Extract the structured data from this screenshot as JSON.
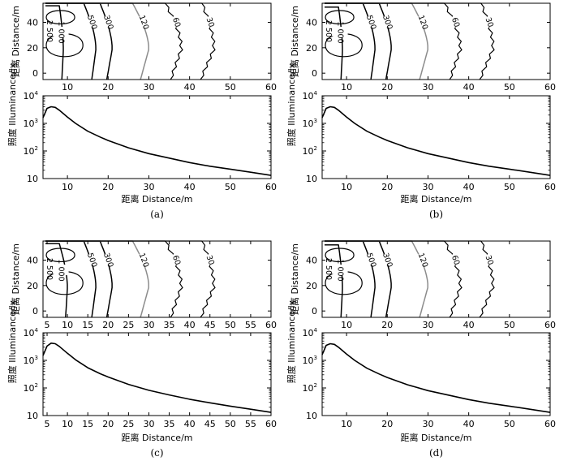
{
  "chart_data": [
    {
      "caption": "(a)",
      "contour": {
        "type": "contour",
        "ylabel": "距离 Distance/m",
        "xlim": [
          4,
          60
        ],
        "ylim": [
          -5,
          55
        ],
        "xticks": [
          10,
          20,
          30,
          40,
          50,
          60
        ],
        "yticks": [
          0,
          20,
          40
        ],
        "levels": [
          {
            "value": 2500,
            "label": "2 500",
            "color": "#000000",
            "x_reach": 6,
            "y_top": 50,
            "x_at_top": 5
          },
          {
            "value": 1000,
            "label": "1 000",
            "color": "#000000",
            "x_reach": 9,
            "y_top": 53,
            "x_at_top": 8
          },
          {
            "value": 500,
            "label": "500",
            "color": "#000000",
            "x_reach": 17,
            "y_top": 55,
            "x_at_top": 14
          },
          {
            "value": 300,
            "label": "300",
            "color": "#000000",
            "x_reach": 21,
            "y_top": 55,
            "x_at_top": 18
          },
          {
            "value": 120,
            "label": "120",
            "color": "#8c8c8c",
            "x_reach": 30,
            "y_top": 55,
            "x_at_top": 26
          },
          {
            "value": 60,
            "label": "60",
            "color": "#000000",
            "x_reach": 38,
            "y_top": 55,
            "x_at_top": 34
          },
          {
            "value": 30,
            "label": "30",
            "color": "#000000",
            "x_reach": 46,
            "y_top": 55,
            "x_at_top": 43
          }
        ]
      },
      "profile": {
        "type": "line",
        "xlabel": "距离 Distance/m",
        "ylabel": "照度 Illuminance/lx",
        "yscale": "log",
        "xlim": [
          4,
          60
        ],
        "ylim": [
          10,
          10000
        ],
        "xticks": [
          10,
          20,
          30,
          40,
          50,
          60
        ],
        "yticks": [
          {
            "value": 10,
            "base": "10",
            "exp": ""
          },
          {
            "value": 100,
            "base": "10",
            "exp": "2"
          },
          {
            "value": 1000,
            "base": "10",
            "exp": "3"
          },
          {
            "value": 10000,
            "base": "10",
            "exp": "4"
          }
        ],
        "series": [
          {
            "x": [
              4,
              5,
              6,
              7,
              8,
              10,
              12,
              15,
              18,
              20,
              25,
              30,
              35,
              40,
              45,
              50,
              55,
              60
            ],
            "y": [
              1600,
              3500,
              4000,
              3800,
              3000,
              1700,
              1000,
              520,
              320,
              240,
              130,
              80,
              55,
              38,
              28,
              22,
              17,
              13
            ]
          }
        ]
      }
    },
    {
      "caption": "(b)",
      "contour": {
        "type": "contour",
        "ylabel": "距离 Distance/m",
        "xlim": [
          4,
          60
        ],
        "ylim": [
          -5,
          55
        ],
        "xticks": [
          10,
          20,
          30,
          40,
          50,
          60
        ],
        "yticks": [
          0,
          20,
          40
        ],
        "levels": [
          {
            "value": 2500,
            "label": "2 500",
            "color": "#000000",
            "x_reach": 6,
            "y_top": 50,
            "x_at_top": 5
          },
          {
            "value": 1000,
            "label": "1 000",
            "color": "#000000",
            "x_reach": 9,
            "y_top": 52,
            "x_at_top": 8
          },
          {
            "value": 500,
            "label": "500",
            "color": "#000000",
            "x_reach": 17,
            "y_top": 55,
            "x_at_top": 14
          },
          {
            "value": 300,
            "label": "300",
            "color": "#000000",
            "x_reach": 21,
            "y_top": 55,
            "x_at_top": 18
          },
          {
            "value": 120,
            "label": "120",
            "color": "#8c8c8c",
            "x_reach": 30,
            "y_top": 55,
            "x_at_top": 26
          },
          {
            "value": 60,
            "label": "60",
            "color": "#000000",
            "x_reach": 38,
            "y_top": 55,
            "x_at_top": 34
          },
          {
            "value": 30,
            "label": "30",
            "color": "#000000",
            "x_reach": 46,
            "y_top": 55,
            "x_at_top": 43
          }
        ]
      },
      "profile": {
        "type": "line",
        "xlabel": "距离 Distance/m",
        "ylabel": "照度 Illuminance/lx",
        "yscale": "log",
        "xlim": [
          4,
          60
        ],
        "ylim": [
          10,
          10000
        ],
        "xticks": [
          10,
          20,
          30,
          40,
          50,
          60
        ],
        "yticks": [
          {
            "value": 10,
            "base": "10",
            "exp": ""
          },
          {
            "value": 100,
            "base": "10",
            "exp": "2"
          },
          {
            "value": 1000,
            "base": "10",
            "exp": "3"
          },
          {
            "value": 10000,
            "base": "10",
            "exp": "4"
          }
        ],
        "series": [
          {
            "x": [
              4,
              5,
              6,
              7,
              8,
              10,
              12,
              15,
              18,
              20,
              25,
              30,
              35,
              40,
              45,
              50,
              55,
              60
            ],
            "y": [
              1600,
              3500,
              4000,
              3800,
              3000,
              1700,
              1000,
              520,
              320,
              240,
              130,
              80,
              55,
              38,
              28,
              22,
              17,
              13
            ]
          }
        ]
      }
    },
    {
      "caption": "(c)",
      "contour": {
        "type": "contour",
        "ylabel": "距离 Distance/m",
        "xlim": [
          4,
          60
        ],
        "ylim": [
          -5,
          55
        ],
        "xticks": [
          5,
          10,
          15,
          20,
          25,
          30,
          35,
          40,
          45,
          50,
          55,
          60
        ],
        "yticks": [
          0,
          20,
          40
        ],
        "levels": [
          {
            "value": 2500,
            "label": "2 500",
            "color": "#000000",
            "x_reach": 7,
            "y_top": 50,
            "x_at_top": 5
          },
          {
            "value": 1000,
            "label": "1 000",
            "color": "#000000",
            "x_reach": 10,
            "y_top": 53,
            "x_at_top": 8
          },
          {
            "value": 500,
            "label": "500",
            "color": "#000000",
            "x_reach": 17,
            "y_top": 55,
            "x_at_top": 14
          },
          {
            "value": 300,
            "label": "300",
            "color": "#000000",
            "x_reach": 21,
            "y_top": 55,
            "x_at_top": 18
          },
          {
            "value": 120,
            "label": "120",
            "color": "#8c8c8c",
            "x_reach": 30,
            "y_top": 55,
            "x_at_top": 26
          },
          {
            "value": 60,
            "label": "60",
            "color": "#000000",
            "x_reach": 38,
            "y_top": 55,
            "x_at_top": 34
          },
          {
            "value": 30,
            "label": "30",
            "color": "#000000",
            "x_reach": 46,
            "y_top": 55,
            "x_at_top": 43
          }
        ]
      },
      "profile": {
        "type": "line",
        "xlabel": "距离 Distance/m",
        "ylabel": "照度 Illuminance/lx",
        "yscale": "log",
        "xlim": [
          4,
          60
        ],
        "ylim": [
          10,
          10000
        ],
        "xticks": [
          5,
          10,
          15,
          20,
          25,
          30,
          35,
          40,
          45,
          50,
          55,
          60
        ],
        "yticks": [
          {
            "value": 10,
            "base": "10",
            "exp": ""
          },
          {
            "value": 100,
            "base": "10",
            "exp": "2"
          },
          {
            "value": 1000,
            "base": "10",
            "exp": "3"
          },
          {
            "value": 10000,
            "base": "10",
            "exp": "4"
          }
        ],
        "series": [
          {
            "x": [
              4,
              5,
              6,
              7,
              8,
              10,
              12,
              15,
              18,
              20,
              25,
              30,
              35,
              40,
              45,
              50,
              55,
              60
            ],
            "y": [
              1500,
              3300,
              4200,
              4000,
              3200,
              1800,
              1050,
              540,
              330,
              250,
              135,
              82,
              56,
              39,
              29,
              22,
              17,
              13
            ]
          }
        ]
      }
    },
    {
      "caption": "(d)",
      "contour": {
        "type": "contour",
        "ylabel": "距离 Distance/m",
        "xlim": [
          4,
          60
        ],
        "ylim": [
          -5,
          55
        ],
        "xticks": [
          10,
          20,
          30,
          40,
          50,
          60
        ],
        "yticks": [
          0,
          20,
          40
        ],
        "levels": [
          {
            "value": 2500,
            "label": "2 500",
            "color": "#000000",
            "x_reach": 6,
            "y_top": 50,
            "x_at_top": 5
          },
          {
            "value": 1000,
            "label": "1 000",
            "color": "#000000",
            "x_reach": 9,
            "y_top": 52,
            "x_at_top": 8
          },
          {
            "value": 500,
            "label": "500",
            "color": "#000000",
            "x_reach": 17,
            "y_top": 55,
            "x_at_top": 14
          },
          {
            "value": 300,
            "label": "300",
            "color": "#000000",
            "x_reach": 21,
            "y_top": 55,
            "x_at_top": 18
          },
          {
            "value": 120,
            "label": "120",
            "color": "#8c8c8c",
            "x_reach": 30,
            "y_top": 55,
            "x_at_top": 26
          },
          {
            "value": 60,
            "label": "60",
            "color": "#000000",
            "x_reach": 38,
            "y_top": 55,
            "x_at_top": 34
          },
          {
            "value": 30,
            "label": "30",
            "color": "#000000",
            "x_reach": 46,
            "y_top": 55,
            "x_at_top": 43
          }
        ]
      },
      "profile": {
        "type": "line",
        "xlabel": "距离 Distance/m",
        "ylabel": "照度 Illuminance/lx",
        "yscale": "log",
        "xlim": [
          4,
          60
        ],
        "ylim": [
          10,
          10000
        ],
        "xticks": [
          10,
          20,
          30,
          40,
          50,
          60
        ],
        "yticks": [
          {
            "value": 10,
            "base": "10",
            "exp": ""
          },
          {
            "value": 100,
            "base": "10",
            "exp": "2"
          },
          {
            "value": 1000,
            "base": "10",
            "exp": "3"
          },
          {
            "value": 10000,
            "base": "10",
            "exp": "4"
          }
        ],
        "series": [
          {
            "x": [
              4,
              5,
              6,
              7,
              8,
              10,
              12,
              15,
              18,
              20,
              25,
              30,
              35,
              40,
              45,
              50,
              55,
              60
            ],
            "y": [
              1600,
              3500,
              4000,
              3800,
              3000,
              1700,
              1000,
              520,
              320,
              240,
              130,
              80,
              55,
              38,
              28,
              22,
              17,
              13
            ]
          }
        ]
      }
    }
  ]
}
